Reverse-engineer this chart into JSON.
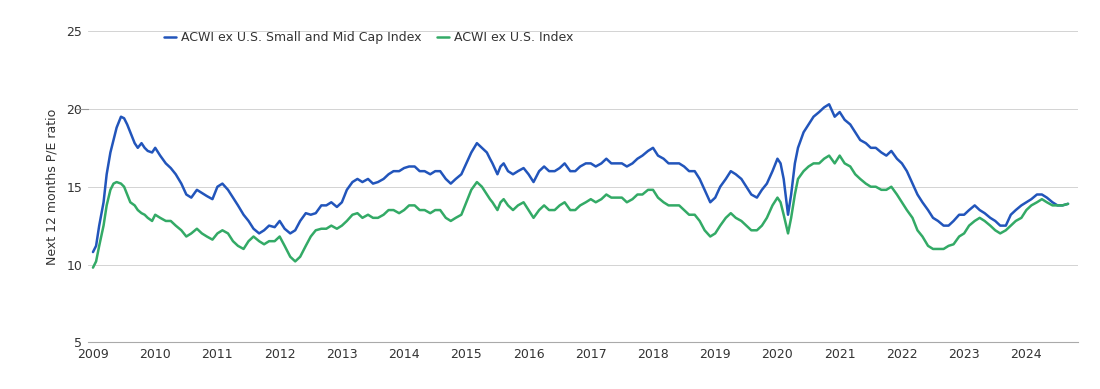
{
  "title": "",
  "ylabel": "Next 12 months P/E ratio",
  "ylim": [
    5,
    25
  ],
  "yticks": [
    5,
    10,
    15,
    20,
    25
  ],
  "grid_yticks": [
    10,
    15,
    20,
    25
  ],
  "xlim": [
    2008.92,
    2024.83
  ],
  "xticks": [
    2009,
    2010,
    2011,
    2012,
    2013,
    2014,
    2015,
    2016,
    2017,
    2018,
    2019,
    2020,
    2021,
    2022,
    2023,
    2024
  ],
  "color_small_mid": "#2255bb",
  "color_large": "#33aa66",
  "legend_label_small_mid": "ACWI ex U.S. Small and Mid Cap Index",
  "legend_label_large": "ACWI ex U.S. Index",
  "line_width": 1.8,
  "background_color": "#ffffff",
  "small_mid_data": [
    [
      2009.0,
      10.8
    ],
    [
      2009.05,
      11.2
    ],
    [
      2009.1,
      12.5
    ],
    [
      2009.17,
      14.0
    ],
    [
      2009.22,
      15.8
    ],
    [
      2009.28,
      17.2
    ],
    [
      2009.33,
      18.0
    ],
    [
      2009.38,
      18.8
    ],
    [
      2009.45,
      19.5
    ],
    [
      2009.5,
      19.4
    ],
    [
      2009.55,
      19.0
    ],
    [
      2009.6,
      18.5
    ],
    [
      2009.67,
      17.8
    ],
    [
      2009.72,
      17.5
    ],
    [
      2009.78,
      17.8
    ],
    [
      2009.83,
      17.5
    ],
    [
      2009.88,
      17.3
    ],
    [
      2009.95,
      17.2
    ],
    [
      2010.0,
      17.5
    ],
    [
      2010.08,
      17.0
    ],
    [
      2010.17,
      16.5
    ],
    [
      2010.25,
      16.2
    ],
    [
      2010.33,
      15.8
    ],
    [
      2010.42,
      15.2
    ],
    [
      2010.5,
      14.5
    ],
    [
      2010.58,
      14.3
    ],
    [
      2010.67,
      14.8
    ],
    [
      2010.75,
      14.6
    ],
    [
      2010.83,
      14.4
    ],
    [
      2010.92,
      14.2
    ],
    [
      2011.0,
      15.0
    ],
    [
      2011.08,
      15.2
    ],
    [
      2011.17,
      14.8
    ],
    [
      2011.25,
      14.3
    ],
    [
      2011.33,
      13.8
    ],
    [
      2011.42,
      13.2
    ],
    [
      2011.5,
      12.8
    ],
    [
      2011.58,
      12.3
    ],
    [
      2011.67,
      12.0
    ],
    [
      2011.75,
      12.2
    ],
    [
      2011.83,
      12.5
    ],
    [
      2011.92,
      12.4
    ],
    [
      2012.0,
      12.8
    ],
    [
      2012.08,
      12.3
    ],
    [
      2012.17,
      12.0
    ],
    [
      2012.25,
      12.2
    ],
    [
      2012.33,
      12.8
    ],
    [
      2012.42,
      13.3
    ],
    [
      2012.5,
      13.2
    ],
    [
      2012.58,
      13.3
    ],
    [
      2012.67,
      13.8
    ],
    [
      2012.75,
      13.8
    ],
    [
      2012.83,
      14.0
    ],
    [
      2012.92,
      13.7
    ],
    [
      2013.0,
      14.0
    ],
    [
      2013.08,
      14.8
    ],
    [
      2013.17,
      15.3
    ],
    [
      2013.25,
      15.5
    ],
    [
      2013.33,
      15.3
    ],
    [
      2013.42,
      15.5
    ],
    [
      2013.5,
      15.2
    ],
    [
      2013.58,
      15.3
    ],
    [
      2013.67,
      15.5
    ],
    [
      2013.75,
      15.8
    ],
    [
      2013.83,
      16.0
    ],
    [
      2013.92,
      16.0
    ],
    [
      2014.0,
      16.2
    ],
    [
      2014.08,
      16.3
    ],
    [
      2014.17,
      16.3
    ],
    [
      2014.25,
      16.0
    ],
    [
      2014.33,
      16.0
    ],
    [
      2014.42,
      15.8
    ],
    [
      2014.5,
      16.0
    ],
    [
      2014.58,
      16.0
    ],
    [
      2014.67,
      15.5
    ],
    [
      2014.75,
      15.2
    ],
    [
      2014.83,
      15.5
    ],
    [
      2014.92,
      15.8
    ],
    [
      2015.0,
      16.5
    ],
    [
      2015.08,
      17.2
    ],
    [
      2015.17,
      17.8
    ],
    [
      2015.25,
      17.5
    ],
    [
      2015.33,
      17.2
    ],
    [
      2015.38,
      16.8
    ],
    [
      2015.42,
      16.5
    ],
    [
      2015.5,
      15.8
    ],
    [
      2015.55,
      16.3
    ],
    [
      2015.6,
      16.5
    ],
    [
      2015.67,
      16.0
    ],
    [
      2015.75,
      15.8
    ],
    [
      2015.83,
      16.0
    ],
    [
      2015.92,
      16.2
    ],
    [
      2016.0,
      15.8
    ],
    [
      2016.08,
      15.3
    ],
    [
      2016.17,
      16.0
    ],
    [
      2016.25,
      16.3
    ],
    [
      2016.33,
      16.0
    ],
    [
      2016.42,
      16.0
    ],
    [
      2016.5,
      16.2
    ],
    [
      2016.58,
      16.5
    ],
    [
      2016.67,
      16.0
    ],
    [
      2016.75,
      16.0
    ],
    [
      2016.83,
      16.3
    ],
    [
      2016.92,
      16.5
    ],
    [
      2017.0,
      16.5
    ],
    [
      2017.08,
      16.3
    ],
    [
      2017.17,
      16.5
    ],
    [
      2017.25,
      16.8
    ],
    [
      2017.33,
      16.5
    ],
    [
      2017.42,
      16.5
    ],
    [
      2017.5,
      16.5
    ],
    [
      2017.58,
      16.3
    ],
    [
      2017.67,
      16.5
    ],
    [
      2017.75,
      16.8
    ],
    [
      2017.83,
      17.0
    ],
    [
      2017.92,
      17.3
    ],
    [
      2018.0,
      17.5
    ],
    [
      2018.08,
      17.0
    ],
    [
      2018.17,
      16.8
    ],
    [
      2018.25,
      16.5
    ],
    [
      2018.33,
      16.5
    ],
    [
      2018.42,
      16.5
    ],
    [
      2018.5,
      16.3
    ],
    [
      2018.58,
      16.0
    ],
    [
      2018.67,
      16.0
    ],
    [
      2018.75,
      15.5
    ],
    [
      2018.83,
      14.8
    ],
    [
      2018.92,
      14.0
    ],
    [
      2019.0,
      14.3
    ],
    [
      2019.08,
      15.0
    ],
    [
      2019.17,
      15.5
    ],
    [
      2019.25,
      16.0
    ],
    [
      2019.33,
      15.8
    ],
    [
      2019.42,
      15.5
    ],
    [
      2019.5,
      15.0
    ],
    [
      2019.58,
      14.5
    ],
    [
      2019.67,
      14.3
    ],
    [
      2019.75,
      14.8
    ],
    [
      2019.83,
      15.2
    ],
    [
      2019.92,
      16.0
    ],
    [
      2020.0,
      16.8
    ],
    [
      2020.05,
      16.5
    ],
    [
      2020.1,
      15.5
    ],
    [
      2020.17,
      13.2
    ],
    [
      2020.22,
      14.5
    ],
    [
      2020.28,
      16.5
    ],
    [
      2020.33,
      17.5
    ],
    [
      2020.42,
      18.5
    ],
    [
      2020.5,
      19.0
    ],
    [
      2020.58,
      19.5
    ],
    [
      2020.67,
      19.8
    ],
    [
      2020.75,
      20.1
    ],
    [
      2020.83,
      20.3
    ],
    [
      2020.92,
      19.5
    ],
    [
      2021.0,
      19.8
    ],
    [
      2021.08,
      19.3
    ],
    [
      2021.17,
      19.0
    ],
    [
      2021.25,
      18.5
    ],
    [
      2021.33,
      18.0
    ],
    [
      2021.42,
      17.8
    ],
    [
      2021.5,
      17.5
    ],
    [
      2021.58,
      17.5
    ],
    [
      2021.67,
      17.2
    ],
    [
      2021.75,
      17.0
    ],
    [
      2021.83,
      17.3
    ],
    [
      2021.92,
      16.8
    ],
    [
      2022.0,
      16.5
    ],
    [
      2022.08,
      16.0
    ],
    [
      2022.17,
      15.2
    ],
    [
      2022.25,
      14.5
    ],
    [
      2022.33,
      14.0
    ],
    [
      2022.42,
      13.5
    ],
    [
      2022.5,
      13.0
    ],
    [
      2022.58,
      12.8
    ],
    [
      2022.67,
      12.5
    ],
    [
      2022.75,
      12.5
    ],
    [
      2022.83,
      12.8
    ],
    [
      2022.92,
      13.2
    ],
    [
      2023.0,
      13.2
    ],
    [
      2023.08,
      13.5
    ],
    [
      2023.17,
      13.8
    ],
    [
      2023.25,
      13.5
    ],
    [
      2023.33,
      13.3
    ],
    [
      2023.42,
      13.0
    ],
    [
      2023.5,
      12.8
    ],
    [
      2023.58,
      12.5
    ],
    [
      2023.67,
      12.5
    ],
    [
      2023.75,
      13.2
    ],
    [
      2023.83,
      13.5
    ],
    [
      2023.92,
      13.8
    ],
    [
      2024.0,
      14.0
    ],
    [
      2024.08,
      14.2
    ],
    [
      2024.17,
      14.5
    ],
    [
      2024.25,
      14.5
    ],
    [
      2024.33,
      14.3
    ],
    [
      2024.42,
      14.0
    ],
    [
      2024.5,
      13.8
    ],
    [
      2024.58,
      13.8
    ],
    [
      2024.67,
      13.9
    ]
  ],
  "large_data": [
    [
      2009.0,
      9.8
    ],
    [
      2009.05,
      10.2
    ],
    [
      2009.1,
      11.2
    ],
    [
      2009.17,
      12.5
    ],
    [
      2009.22,
      13.8
    ],
    [
      2009.28,
      14.8
    ],
    [
      2009.33,
      15.2
    ],
    [
      2009.38,
      15.3
    ],
    [
      2009.45,
      15.2
    ],
    [
      2009.5,
      15.0
    ],
    [
      2009.55,
      14.5
    ],
    [
      2009.6,
      14.0
    ],
    [
      2009.67,
      13.8
    ],
    [
      2009.72,
      13.5
    ],
    [
      2009.78,
      13.3
    ],
    [
      2009.83,
      13.2
    ],
    [
      2009.88,
      13.0
    ],
    [
      2009.95,
      12.8
    ],
    [
      2010.0,
      13.2
    ],
    [
      2010.08,
      13.0
    ],
    [
      2010.17,
      12.8
    ],
    [
      2010.25,
      12.8
    ],
    [
      2010.33,
      12.5
    ],
    [
      2010.42,
      12.2
    ],
    [
      2010.5,
      11.8
    ],
    [
      2010.58,
      12.0
    ],
    [
      2010.67,
      12.3
    ],
    [
      2010.75,
      12.0
    ],
    [
      2010.83,
      11.8
    ],
    [
      2010.92,
      11.6
    ],
    [
      2011.0,
      12.0
    ],
    [
      2011.08,
      12.2
    ],
    [
      2011.17,
      12.0
    ],
    [
      2011.25,
      11.5
    ],
    [
      2011.33,
      11.2
    ],
    [
      2011.42,
      11.0
    ],
    [
      2011.5,
      11.5
    ],
    [
      2011.58,
      11.8
    ],
    [
      2011.67,
      11.5
    ],
    [
      2011.75,
      11.3
    ],
    [
      2011.83,
      11.5
    ],
    [
      2011.92,
      11.5
    ],
    [
      2012.0,
      11.8
    ],
    [
      2012.08,
      11.2
    ],
    [
      2012.17,
      10.5
    ],
    [
      2012.25,
      10.2
    ],
    [
      2012.33,
      10.5
    ],
    [
      2012.42,
      11.2
    ],
    [
      2012.5,
      11.8
    ],
    [
      2012.58,
      12.2
    ],
    [
      2012.67,
      12.3
    ],
    [
      2012.75,
      12.3
    ],
    [
      2012.83,
      12.5
    ],
    [
      2012.92,
      12.3
    ],
    [
      2013.0,
      12.5
    ],
    [
      2013.08,
      12.8
    ],
    [
      2013.17,
      13.2
    ],
    [
      2013.25,
      13.3
    ],
    [
      2013.33,
      13.0
    ],
    [
      2013.42,
      13.2
    ],
    [
      2013.5,
      13.0
    ],
    [
      2013.58,
      13.0
    ],
    [
      2013.67,
      13.2
    ],
    [
      2013.75,
      13.5
    ],
    [
      2013.83,
      13.5
    ],
    [
      2013.92,
      13.3
    ],
    [
      2014.0,
      13.5
    ],
    [
      2014.08,
      13.8
    ],
    [
      2014.17,
      13.8
    ],
    [
      2014.25,
      13.5
    ],
    [
      2014.33,
      13.5
    ],
    [
      2014.42,
      13.3
    ],
    [
      2014.5,
      13.5
    ],
    [
      2014.58,
      13.5
    ],
    [
      2014.67,
      13.0
    ],
    [
      2014.75,
      12.8
    ],
    [
      2014.83,
      13.0
    ],
    [
      2014.92,
      13.2
    ],
    [
      2015.0,
      14.0
    ],
    [
      2015.08,
      14.8
    ],
    [
      2015.17,
      15.3
    ],
    [
      2015.25,
      15.0
    ],
    [
      2015.33,
      14.5
    ],
    [
      2015.38,
      14.2
    ],
    [
      2015.42,
      14.0
    ],
    [
      2015.5,
      13.5
    ],
    [
      2015.55,
      14.0
    ],
    [
      2015.6,
      14.2
    ],
    [
      2015.67,
      13.8
    ],
    [
      2015.75,
      13.5
    ],
    [
      2015.83,
      13.8
    ],
    [
      2015.92,
      14.0
    ],
    [
      2016.0,
      13.5
    ],
    [
      2016.08,
      13.0
    ],
    [
      2016.17,
      13.5
    ],
    [
      2016.25,
      13.8
    ],
    [
      2016.33,
      13.5
    ],
    [
      2016.42,
      13.5
    ],
    [
      2016.5,
      13.8
    ],
    [
      2016.58,
      14.0
    ],
    [
      2016.67,
      13.5
    ],
    [
      2016.75,
      13.5
    ],
    [
      2016.83,
      13.8
    ],
    [
      2016.92,
      14.0
    ],
    [
      2017.0,
      14.2
    ],
    [
      2017.08,
      14.0
    ],
    [
      2017.17,
      14.2
    ],
    [
      2017.25,
      14.5
    ],
    [
      2017.33,
      14.3
    ],
    [
      2017.42,
      14.3
    ],
    [
      2017.5,
      14.3
    ],
    [
      2017.58,
      14.0
    ],
    [
      2017.67,
      14.2
    ],
    [
      2017.75,
      14.5
    ],
    [
      2017.83,
      14.5
    ],
    [
      2017.92,
      14.8
    ],
    [
      2018.0,
      14.8
    ],
    [
      2018.08,
      14.3
    ],
    [
      2018.17,
      14.0
    ],
    [
      2018.25,
      13.8
    ],
    [
      2018.33,
      13.8
    ],
    [
      2018.42,
      13.8
    ],
    [
      2018.5,
      13.5
    ],
    [
      2018.58,
      13.2
    ],
    [
      2018.67,
      13.2
    ],
    [
      2018.75,
      12.8
    ],
    [
      2018.83,
      12.2
    ],
    [
      2018.92,
      11.8
    ],
    [
      2019.0,
      12.0
    ],
    [
      2019.08,
      12.5
    ],
    [
      2019.17,
      13.0
    ],
    [
      2019.25,
      13.3
    ],
    [
      2019.33,
      13.0
    ],
    [
      2019.42,
      12.8
    ],
    [
      2019.5,
      12.5
    ],
    [
      2019.58,
      12.2
    ],
    [
      2019.67,
      12.2
    ],
    [
      2019.75,
      12.5
    ],
    [
      2019.83,
      13.0
    ],
    [
      2019.92,
      13.8
    ],
    [
      2020.0,
      14.3
    ],
    [
      2020.05,
      14.0
    ],
    [
      2020.1,
      13.2
    ],
    [
      2020.17,
      12.0
    ],
    [
      2020.22,
      13.0
    ],
    [
      2020.28,
      14.5
    ],
    [
      2020.33,
      15.5
    ],
    [
      2020.42,
      16.0
    ],
    [
      2020.5,
      16.3
    ],
    [
      2020.58,
      16.5
    ],
    [
      2020.67,
      16.5
    ],
    [
      2020.75,
      16.8
    ],
    [
      2020.83,
      17.0
    ],
    [
      2020.92,
      16.5
    ],
    [
      2021.0,
      17.0
    ],
    [
      2021.08,
      16.5
    ],
    [
      2021.17,
      16.3
    ],
    [
      2021.25,
      15.8
    ],
    [
      2021.33,
      15.5
    ],
    [
      2021.42,
      15.2
    ],
    [
      2021.5,
      15.0
    ],
    [
      2021.58,
      15.0
    ],
    [
      2021.67,
      14.8
    ],
    [
      2021.75,
      14.8
    ],
    [
      2021.83,
      15.0
    ],
    [
      2021.92,
      14.5
    ],
    [
      2022.0,
      14.0
    ],
    [
      2022.08,
      13.5
    ],
    [
      2022.17,
      13.0
    ],
    [
      2022.25,
      12.2
    ],
    [
      2022.33,
      11.8
    ],
    [
      2022.42,
      11.2
    ],
    [
      2022.5,
      11.0
    ],
    [
      2022.58,
      11.0
    ],
    [
      2022.67,
      11.0
    ],
    [
      2022.75,
      11.2
    ],
    [
      2022.83,
      11.3
    ],
    [
      2022.92,
      11.8
    ],
    [
      2023.0,
      12.0
    ],
    [
      2023.08,
      12.5
    ],
    [
      2023.17,
      12.8
    ],
    [
      2023.25,
      13.0
    ],
    [
      2023.33,
      12.8
    ],
    [
      2023.42,
      12.5
    ],
    [
      2023.5,
      12.2
    ],
    [
      2023.58,
      12.0
    ],
    [
      2023.67,
      12.2
    ],
    [
      2023.75,
      12.5
    ],
    [
      2023.83,
      12.8
    ],
    [
      2023.92,
      13.0
    ],
    [
      2024.0,
      13.5
    ],
    [
      2024.08,
      13.8
    ],
    [
      2024.17,
      14.0
    ],
    [
      2024.25,
      14.2
    ],
    [
      2024.33,
      14.0
    ],
    [
      2024.42,
      13.8
    ],
    [
      2024.5,
      13.8
    ],
    [
      2024.58,
      13.8
    ],
    [
      2024.67,
      13.9
    ]
  ]
}
